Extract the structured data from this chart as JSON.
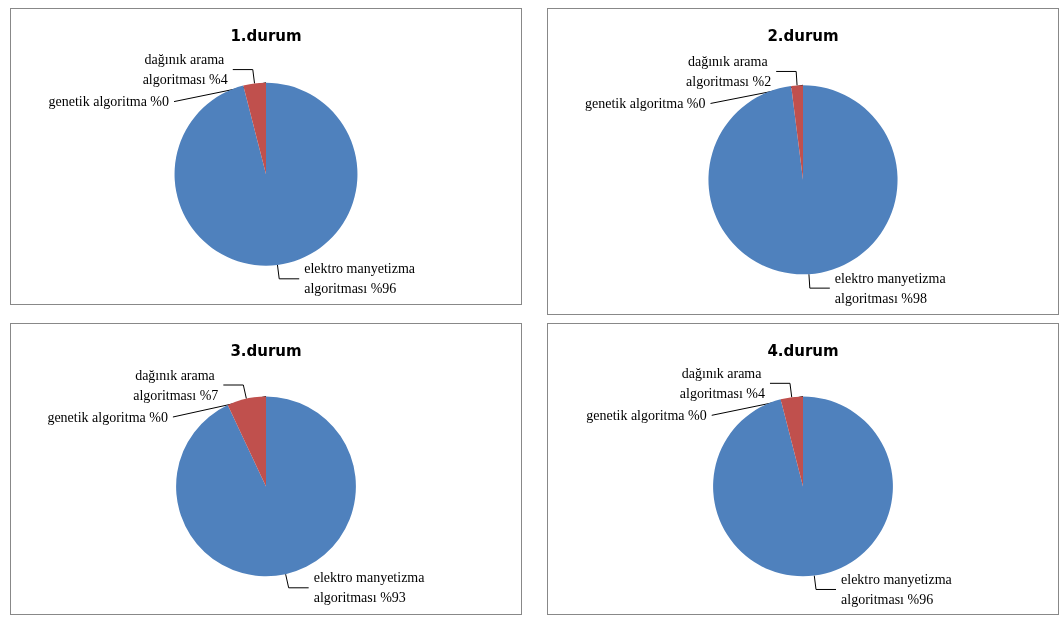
{
  "chart_data": [
    {
      "type": "pie",
      "title": "1.durum",
      "categories": [
        "elektro manyetizma algoritması",
        "dağınık arama algoritması",
        "genetik algoritma"
      ],
      "values": [
        96,
        4,
        0
      ],
      "value_labels": [
        "%96",
        "%4",
        "%0"
      ],
      "colors": [
        "#4f81bd",
        "#c0504d",
        "#9bbb59"
      ],
      "legend": false
    },
    {
      "type": "pie",
      "title": "2.durum",
      "categories": [
        "elektro manyetizma algoritması",
        "dağınık arama algoritması",
        "genetik algoritma"
      ],
      "values": [
        98,
        2,
        0
      ],
      "value_labels": [
        "%98",
        "%2",
        "%0"
      ],
      "colors": [
        "#4f81bd",
        "#c0504d",
        "#9bbb59"
      ],
      "legend": false
    },
    {
      "type": "pie",
      "title": "3.durum",
      "categories": [
        "elektro manyetizma algoritması",
        "dağınık arama algoritması",
        "genetik algoritma"
      ],
      "values": [
        93,
        7,
        0
      ],
      "value_labels": [
        "%93",
        "%7",
        "%0"
      ],
      "colors": [
        "#4f81bd",
        "#c0504d",
        "#9bbb59"
      ],
      "legend": false
    },
    {
      "type": "pie",
      "title": "4.durum",
      "categories": [
        "elektro manyetizma algoritması",
        "dağınık arama algoritması",
        "genetik algoritma"
      ],
      "values": [
        96,
        4,
        0
      ],
      "value_labels": [
        "%96",
        "%4",
        "%0"
      ],
      "colors": [
        "#4f81bd",
        "#c0504d",
        "#9bbb59"
      ],
      "legend": false
    }
  ]
}
